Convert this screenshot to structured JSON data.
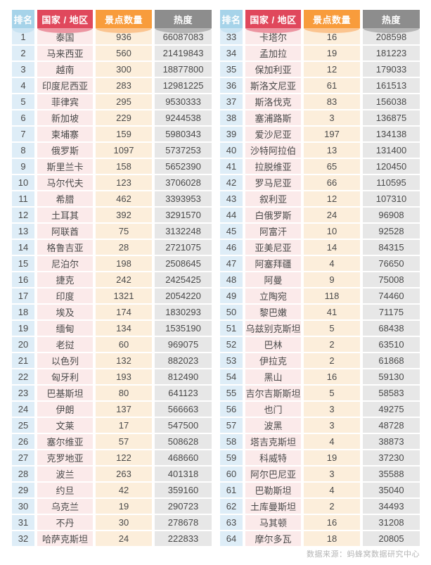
{
  "chart_data": {
    "type": "table",
    "columns": [
      "排名",
      "国家 / 地区",
      "景点数量",
      "热度"
    ],
    "column_keys": [
      "rank",
      "country",
      "count",
      "heat"
    ],
    "tables": [
      {
        "rows": [
          [
            1,
            "泰国",
            936,
            66087083
          ],
          [
            2,
            "马来西亚",
            560,
            21419843
          ],
          [
            3,
            "越南",
            300,
            18877800
          ],
          [
            4,
            "印度尼西亚",
            283,
            12981225
          ],
          [
            5,
            "菲律宾",
            295,
            9530333
          ],
          [
            6,
            "新加坡",
            229,
            9244538
          ],
          [
            7,
            "柬埔寨",
            159,
            5980343
          ],
          [
            8,
            "俄罗斯",
            1097,
            5737253
          ],
          [
            9,
            "斯里兰卡",
            158,
            5652390
          ],
          [
            10,
            "马尔代夫",
            123,
            3706028
          ],
          [
            11,
            "希腊",
            462,
            3393953
          ],
          [
            12,
            "土耳其",
            392,
            3291570
          ],
          [
            13,
            "阿联酋",
            75,
            3132248
          ],
          [
            14,
            "格鲁吉亚",
            28,
            2721075
          ],
          [
            15,
            "尼泊尔",
            198,
            2508645
          ],
          [
            16,
            "捷克",
            242,
            2425425
          ],
          [
            17,
            "印度",
            1321,
            2054220
          ],
          [
            18,
            "埃及",
            174,
            1830293
          ],
          [
            19,
            "缅甸",
            134,
            1535190
          ],
          [
            20,
            "老挝",
            60,
            969075
          ],
          [
            21,
            "以色列",
            132,
            882023
          ],
          [
            22,
            "匈牙利",
            193,
            812490
          ],
          [
            23,
            "巴基斯坦",
            80,
            641123
          ],
          [
            24,
            "伊朗",
            137,
            566663
          ],
          [
            25,
            "文莱",
            17,
            547500
          ],
          [
            26,
            "塞尔维亚",
            57,
            508628
          ],
          [
            27,
            "克罗地亚",
            122,
            468660
          ],
          [
            28,
            "波兰",
            263,
            401318
          ],
          [
            29,
            "约旦",
            42,
            359160
          ],
          [
            30,
            "乌克兰",
            19,
            290723
          ],
          [
            31,
            "不丹",
            30,
            278678
          ],
          [
            32,
            "哈萨克斯坦",
            24,
            222833
          ]
        ]
      },
      {
        "rows": [
          [
            33,
            "卡塔尔",
            16,
            208598
          ],
          [
            34,
            "孟加拉",
            19,
            181223
          ],
          [
            35,
            "保加利亚",
            12,
            179033
          ],
          [
            36,
            "斯洛文尼亚",
            61,
            161513
          ],
          [
            37,
            "斯洛伐克",
            83,
            156038
          ],
          [
            38,
            "塞浦路斯",
            3,
            136875
          ],
          [
            39,
            "爱沙尼亚",
            197,
            134138
          ],
          [
            40,
            "沙特阿拉伯",
            13,
            131400
          ],
          [
            41,
            "拉脱维亚",
            65,
            120450
          ],
          [
            42,
            "罗马尼亚",
            66,
            110595
          ],
          [
            43,
            "叙利亚",
            12,
            107310
          ],
          [
            44,
            "白俄罗斯",
            24,
            96908
          ],
          [
            45,
            "阿富汗",
            10,
            92528
          ],
          [
            46,
            "亚美尼亚",
            14,
            84315
          ],
          [
            47,
            "阿塞拜疆",
            4,
            76650
          ],
          [
            48,
            "阿曼",
            9,
            75008
          ],
          [
            49,
            "立陶宛",
            118,
            74460
          ],
          [
            50,
            "黎巴嫩",
            41,
            71175
          ],
          [
            51,
            "乌兹别克斯坦",
            5,
            68438
          ],
          [
            52,
            "巴林",
            2,
            63510
          ],
          [
            53,
            "伊拉克",
            2,
            61868
          ],
          [
            54,
            "黑山",
            16,
            59130
          ],
          [
            55,
            "吉尔吉斯斯坦",
            5,
            58583
          ],
          [
            56,
            "也门",
            3,
            49275
          ],
          [
            57,
            "波黑",
            3,
            48728
          ],
          [
            58,
            "塔吉克斯坦",
            4,
            38873
          ],
          [
            59,
            "科威特",
            19,
            37230
          ],
          [
            60,
            "阿尔巴尼亚",
            3,
            35588
          ],
          [
            61,
            "巴勒斯坦",
            4,
            35040
          ],
          [
            62,
            "土库曼斯坦",
            2,
            34493
          ],
          [
            63,
            "马其顿",
            16,
            31208
          ],
          [
            64,
            "摩尔多瓦",
            18,
            20805
          ]
        ]
      }
    ]
  },
  "colors": {
    "header": [
      "#a6d3e9",
      "#e0485c",
      "#f89c3c",
      "#8d8d8d"
    ],
    "curve": [
      "#c9e3f2",
      "#ec95a1",
      "#fbc48f",
      "#b5b5b5"
    ],
    "cell": [
      "#deedf7",
      "#fbeaea",
      "#fceedb",
      "#e7e7e7"
    ]
  },
  "footer": {
    "source": "数据来源：蚂蜂窝数据研究中心"
  }
}
